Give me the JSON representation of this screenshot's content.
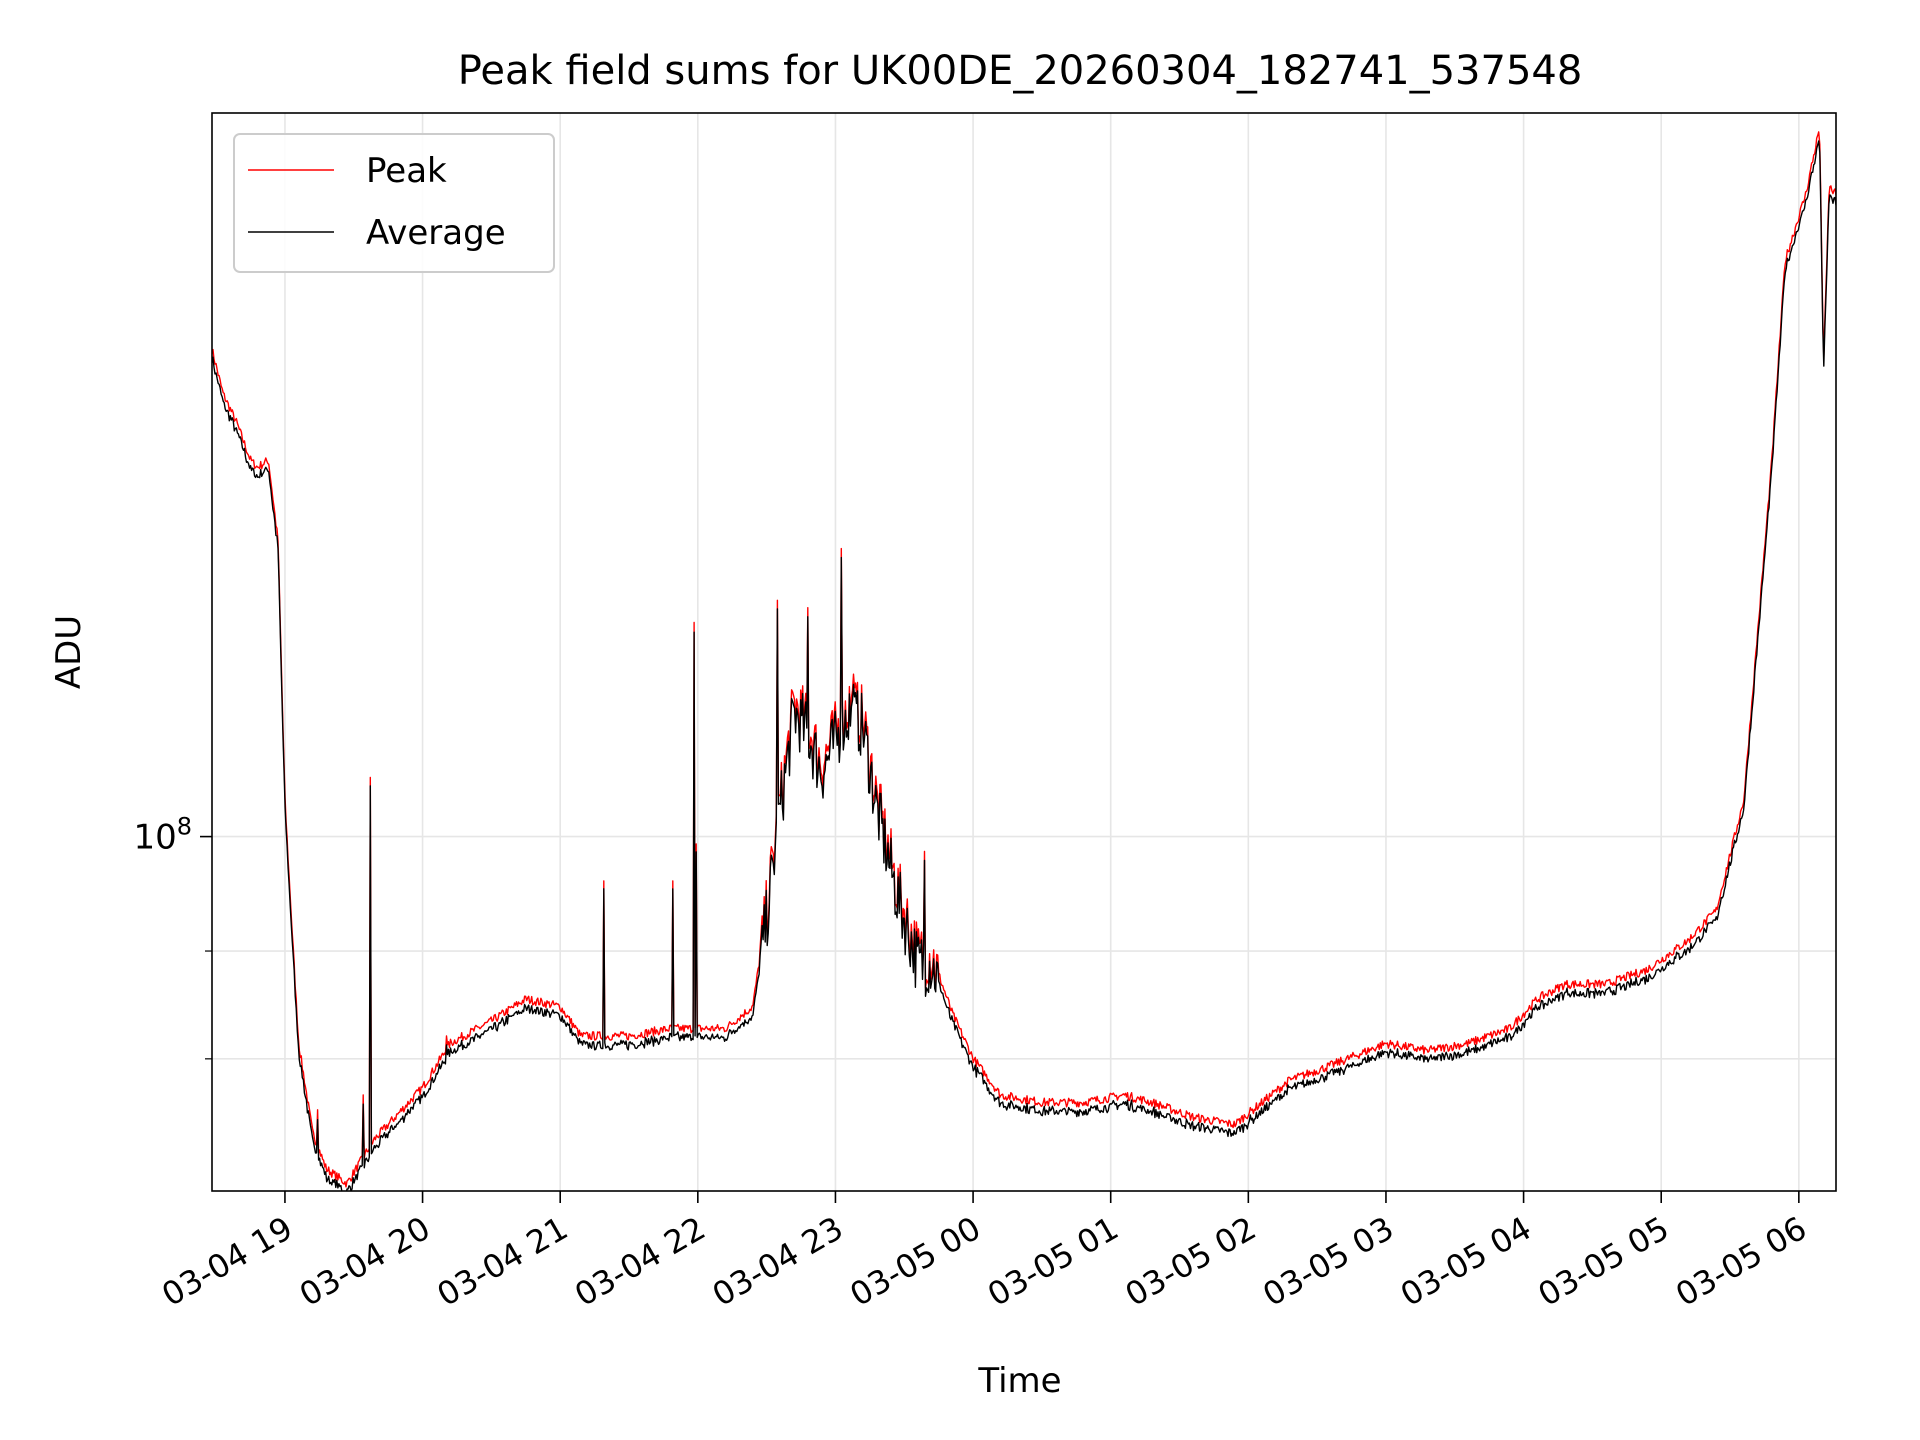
{
  "chart_data": {
    "type": "line",
    "title": "Peak field sums for UK00DE_20260304_182741_537548",
    "xlabel": "Time",
    "ylabel": "ADU",
    "y_scale": "log",
    "grid": true,
    "legend_position": "upper-left",
    "x_range_hours": [
      -0.53,
      11.27
    ],
    "y_range_log10": [
      7.52,
      8.98
    ],
    "x_ticks": [
      {
        "hour": 0,
        "label": "03-04 19"
      },
      {
        "hour": 1,
        "label": "03-04 20"
      },
      {
        "hour": 2,
        "label": "03-04 21"
      },
      {
        "hour": 3,
        "label": "03-04 22"
      },
      {
        "hour": 4,
        "label": "03-04 23"
      },
      {
        "hour": 5,
        "label": "03-05 00"
      },
      {
        "hour": 6,
        "label": "03-05 01"
      },
      {
        "hour": 7,
        "label": "03-05 02"
      },
      {
        "hour": 8,
        "label": "03-05 03"
      },
      {
        "hour": 9,
        "label": "03-05 04"
      },
      {
        "hour": 10,
        "label": "03-05 05"
      },
      {
        "hour": 11,
        "label": "03-05 06"
      }
    ],
    "y_major_ticks": [
      {
        "log10": 8,
        "label_base": "10",
        "label_exp": "8"
      }
    ],
    "y_minor_ticks_log10": [
      7.699,
      7.845
    ],
    "series": [
      {
        "name": "Peak",
        "color": "#ff0000",
        "points_hours_log10": [
          [
            -0.53,
            8.66
          ],
          [
            -0.45,
            8.6
          ],
          [
            -0.35,
            8.56
          ],
          [
            -0.25,
            8.51
          ],
          [
            -0.2,
            8.5
          ],
          [
            -0.12,
            8.51
          ],
          [
            -0.05,
            8.4
          ],
          [
            0.0,
            8.05
          ],
          [
            0.05,
            7.88
          ],
          [
            0.1,
            7.72
          ],
          [
            0.2,
            7.6
          ],
          [
            0.3,
            7.55
          ],
          [
            0.45,
            7.53
          ],
          [
            0.55,
            7.56
          ],
          [
            0.65,
            7.59
          ],
          [
            0.8,
            7.62
          ],
          [
            1.0,
            7.66
          ],
          [
            1.2,
            7.72
          ],
          [
            1.5,
            7.75
          ],
          [
            1.75,
            7.78
          ],
          [
            2.0,
            7.77
          ],
          [
            2.15,
            7.73
          ],
          [
            2.5,
            7.73
          ],
          [
            2.8,
            7.74
          ],
          [
            3.2,
            7.74
          ],
          [
            3.4,
            7.77
          ],
          [
            3.5,
            7.9
          ],
          [
            3.6,
            8.05
          ],
          [
            3.7,
            8.18
          ],
          [
            3.8,
            8.15
          ],
          [
            3.9,
            8.1
          ],
          [
            4.0,
            8.14
          ],
          [
            4.1,
            8.18
          ],
          [
            4.2,
            8.16
          ],
          [
            4.3,
            8.05
          ],
          [
            4.45,
            7.93
          ],
          [
            4.6,
            7.84
          ],
          [
            4.7,
            7.84
          ],
          [
            4.85,
            7.76
          ],
          [
            5.0,
            7.7
          ],
          [
            5.2,
            7.65
          ],
          [
            5.5,
            7.64
          ],
          [
            5.8,
            7.64
          ],
          [
            6.1,
            7.65
          ],
          [
            6.3,
            7.64
          ],
          [
            6.6,
            7.62
          ],
          [
            6.9,
            7.61
          ],
          [
            7.1,
            7.64
          ],
          [
            7.3,
            7.67
          ],
          [
            7.6,
            7.69
          ],
          [
            8.0,
            7.72
          ],
          [
            8.3,
            7.71
          ],
          [
            8.6,
            7.72
          ],
          [
            8.9,
            7.74
          ],
          [
            9.1,
            7.78
          ],
          [
            9.3,
            7.8
          ],
          [
            9.6,
            7.8
          ],
          [
            9.9,
            7.82
          ],
          [
            10.2,
            7.86
          ],
          [
            10.4,
            7.9
          ],
          [
            10.6,
            8.05
          ],
          [
            10.8,
            8.5
          ],
          [
            10.9,
            8.78
          ],
          [
            11.05,
            8.87
          ],
          [
            11.15,
            8.96
          ],
          [
            11.18,
            8.64
          ],
          [
            11.22,
            8.88
          ],
          [
            11.27,
            8.87
          ]
        ],
        "spikes_hours_log10": [
          [
            0.24,
            7.63
          ],
          [
            0.57,
            7.65
          ],
          [
            0.62,
            8.08
          ],
          [
            1.17,
            7.73
          ],
          [
            2.32,
            7.94
          ],
          [
            2.82,
            7.94
          ],
          [
            2.97,
            8.29
          ],
          [
            2.99,
            7.99
          ],
          [
            3.58,
            8.32
          ],
          [
            3.8,
            8.31
          ],
          [
            4.04,
            8.39
          ],
          [
            4.13,
            8.22
          ],
          [
            4.65,
            7.98
          ]
        ]
      },
      {
        "name": "Average",
        "color": "#000000",
        "offset_log10": -0.012
      }
    ]
  }
}
